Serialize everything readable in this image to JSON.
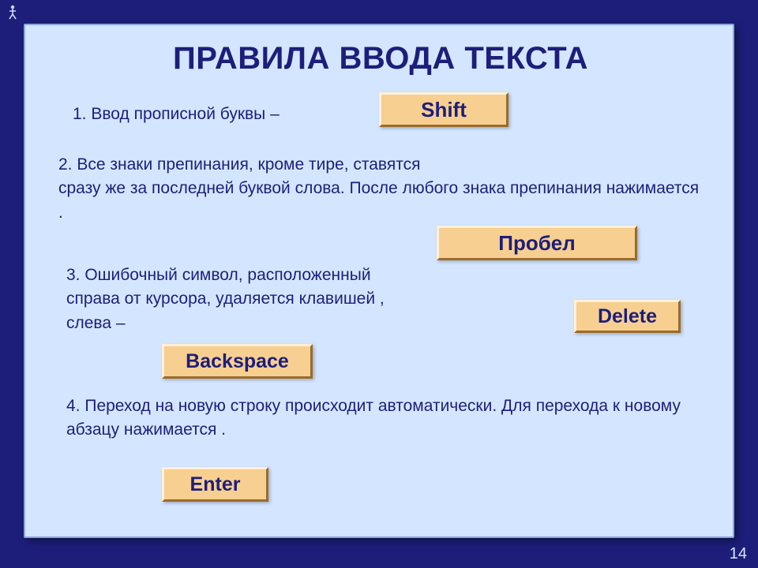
{
  "colors": {
    "frame_bg": "#1d1e7a",
    "card_bg": "#d4e6ff",
    "card_border": "#8aa8d8",
    "text": "#1d1e7a",
    "key_bg": "#f7cf91",
    "key_border_light": "#fff1d8",
    "key_border_dark": "#9c6b2a",
    "pagenum": "#d4e6ff"
  },
  "title": "ПРАВИЛА ВВОДА ТЕКСТА",
  "rules": {
    "r1": "1.    Ввод прописной буквы –",
    "r2": "2. Все знаки препинания, кроме тире, ставятся\nсразу же за последней буквой слова. После любого знака препинания нажимается                                         .",
    "r3": "3. Ошибочный символ, расположенный\nсправа от курсора, удаляется клавишей                             ,\nслева –",
    "r4": "4. Переход на новую строку происходит автоматически. Для перехода к новому абзацу нажимается                        ."
  },
  "keys": {
    "shift": "Shift",
    "space": "Пробел",
    "delete": "Delete",
    "backspace": "Backspace",
    "enter": "Enter"
  },
  "page_number": "14",
  "typography": {
    "title_fontsize": 40,
    "body_fontsize": 21,
    "key_fontsize": 26
  }
}
